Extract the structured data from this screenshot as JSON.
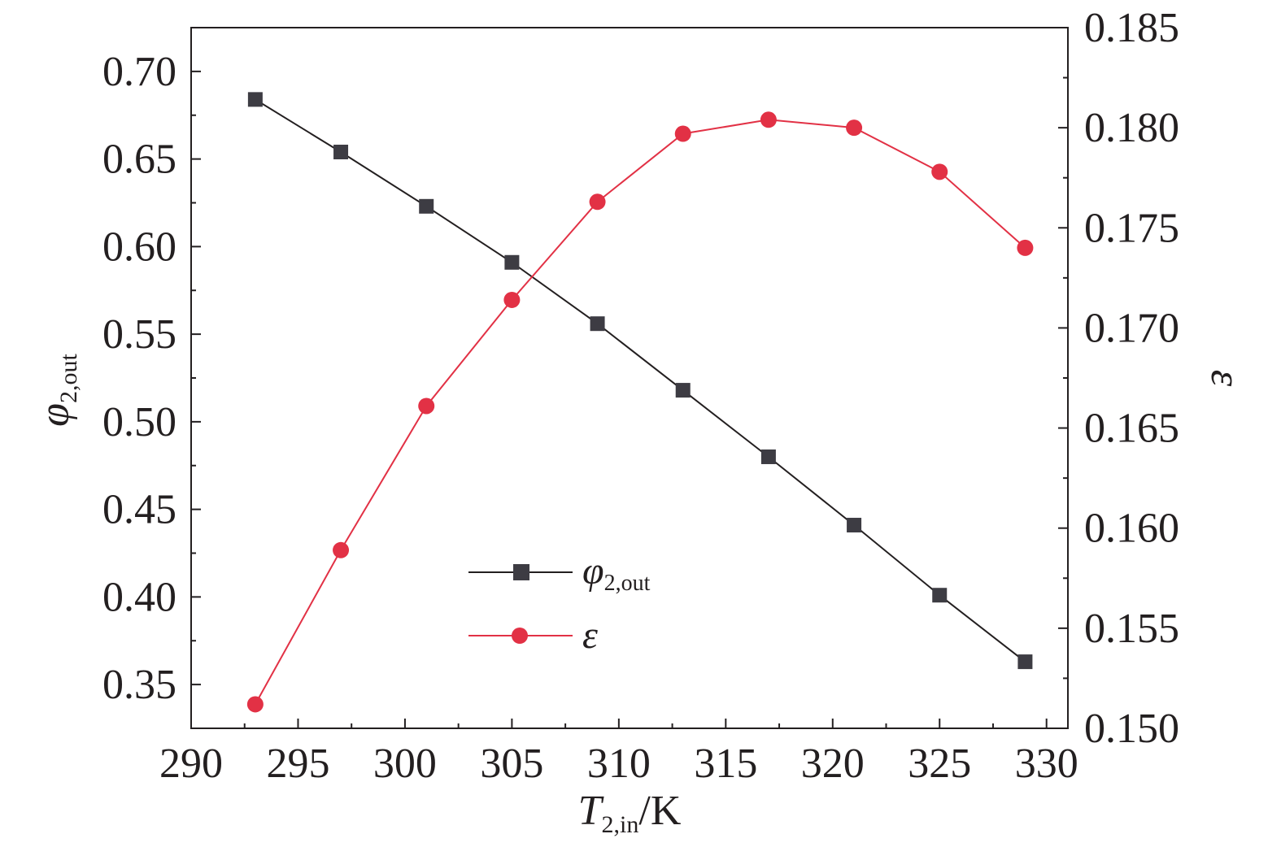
{
  "chart_data": {
    "type": "line",
    "x_axis": {
      "label_main": "T",
      "label_sub": "2,in",
      "label_unit": "/K",
      "min": 290,
      "max": 331,
      "ticks": [
        290,
        295,
        300,
        305,
        310,
        315,
        320,
        325,
        330
      ],
      "tick_labels": [
        "290",
        "295",
        "300",
        "305",
        "310",
        "315",
        "320",
        "325",
        "330"
      ]
    },
    "y_left": {
      "label_main": "φ",
      "label_sub": "2,out",
      "min": 0.325,
      "max": 0.725,
      "ticks": [
        0.35,
        0.4,
        0.45,
        0.5,
        0.55,
        0.6,
        0.65,
        0.7
      ],
      "tick_labels": [
        "0.35",
        "0.40",
        "0.45",
        "0.50",
        "0.55",
        "0.60",
        "0.65",
        "0.70"
      ]
    },
    "y_right": {
      "label": "ε",
      "min": 0.15,
      "max": 0.185,
      "ticks": [
        0.15,
        0.155,
        0.16,
        0.165,
        0.17,
        0.175,
        0.18,
        0.185
      ],
      "tick_labels": [
        "0.150",
        "0.155",
        "0.160",
        "0.165",
        "0.170",
        "0.175",
        "0.180",
        "0.185"
      ]
    },
    "x": [
      293,
      297,
      301,
      305,
      309,
      313,
      317,
      321,
      325,
      329
    ],
    "series": [
      {
        "name_main": "φ",
        "name_sub": "2,out",
        "axis": "left",
        "marker": "square",
        "color": "#3d3c43",
        "line_color": "#231f20",
        "values": [
          0.684,
          0.654,
          0.623,
          0.591,
          0.556,
          0.518,
          0.48,
          0.441,
          0.401,
          0.363
        ]
      },
      {
        "name_main": "ε",
        "name_sub": "",
        "axis": "right",
        "marker": "circle",
        "color": "#e23145",
        "line_color": "#e23145",
        "values": [
          0.1512,
          0.1589,
          0.1661,
          0.1714,
          0.1763,
          0.1797,
          0.1804,
          0.18,
          0.1778,
          0.174
        ]
      }
    ],
    "legend_position": "lower-center",
    "grid": false
  }
}
